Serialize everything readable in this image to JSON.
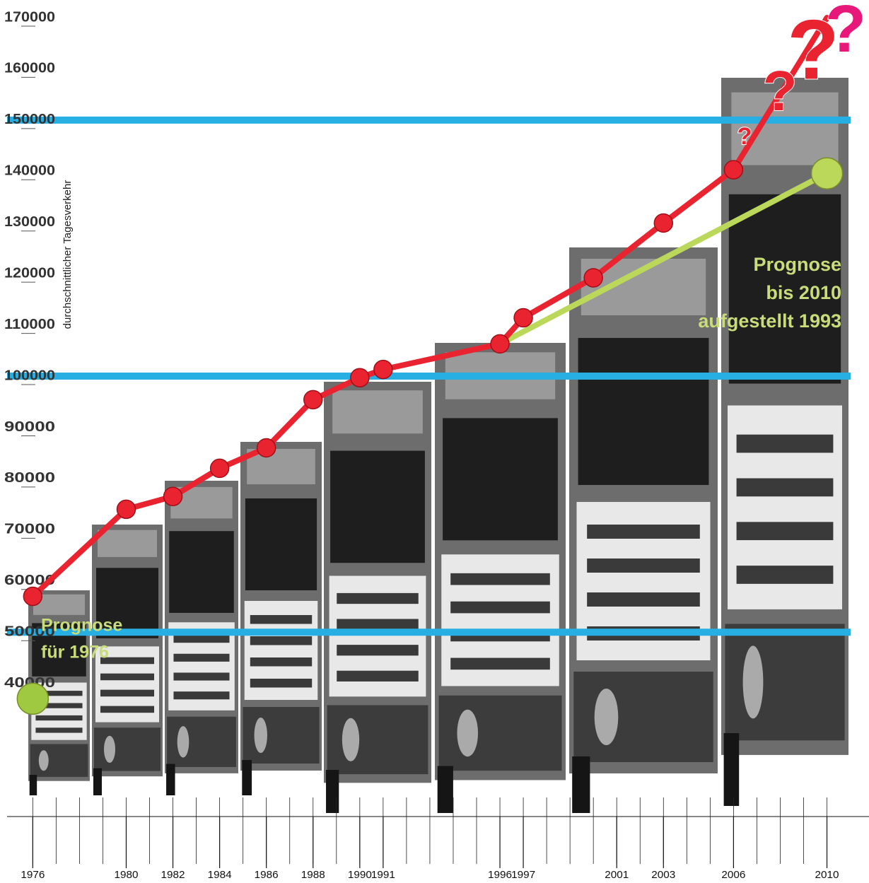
{
  "chart_data": {
    "type": "line",
    "y_label": "durchschnittlicher Tagesverkehr",
    "xlim": [
      1974.9,
      2011.8
    ],
    "ylim": [
      14000,
      172000
    ],
    "xticks": [
      1976,
      1980,
      1982,
      1984,
      1986,
      1988,
      1990,
      1991,
      1996,
      1997,
      2001,
      2003,
      2006,
      2010
    ],
    "xminorticks": [
      1976,
      1977,
      1978,
      1979,
      1980,
      1981,
      1982,
      1983,
      1984,
      1985,
      1986,
      1987,
      1988,
      1989,
      1990,
      1991,
      1992,
      1993,
      1994,
      1995,
      1996,
      1997,
      1998,
      1999,
      2000,
      2001,
      2002,
      2003,
      2004,
      2005,
      2006,
      2007,
      2008,
      2009,
      2010
    ],
    "yticks": [
      40000,
      50000,
      60000,
      70000,
      80000,
      90000,
      100000,
      110000,
      120000,
      130000,
      140000,
      150000,
      160000,
      170000
    ],
    "reference_lines": {
      "color": "#27aee3",
      "values": [
        50000,
        100000,
        150000
      ]
    },
    "series": [
      {
        "color": "#9fc940",
        "markers": "all",
        "x": [
          1976
        ],
        "values": [
          37000
        ]
      },
      {
        "color": "#bcd85a",
        "markers": "last",
        "x": [
          1996,
          2010
        ],
        "values": [
          106300,
          139600
        ]
      },
      {
        "color": "#ea2330",
        "markers": "except-last",
        "x": [
          1976,
          1980,
          1982,
          1984,
          1986,
          1988,
          1990,
          1991,
          1996,
          1997,
          2000,
          2003,
          2006,
          2010
        ],
        "values": [
          57000,
          74000,
          76500,
          82000,
          86000,
          95400,
          99700,
          101300,
          106300,
          111400,
          119200,
          129900,
          140300,
          170000
        ]
      }
    ],
    "annotations": [
      {
        "lines": [
          "Prognose",
          "für 1976"
        ],
        "color": "#c9dc7a"
      },
      {
        "lines": [
          "Prognose",
          "bis 2010",
          "aufgestellt 1993"
        ],
        "color": "#c9dc7a"
      },
      {
        "lines": [
          "?"
        ],
        "color": "#ea2330"
      },
      {
        "lines": [
          "?"
        ],
        "color": "#ea2330"
      },
      {
        "lines": [
          "?"
        ],
        "color": "#ea2330"
      },
      {
        "lines": [
          "?"
        ],
        "color": "#e8187a"
      }
    ]
  }
}
